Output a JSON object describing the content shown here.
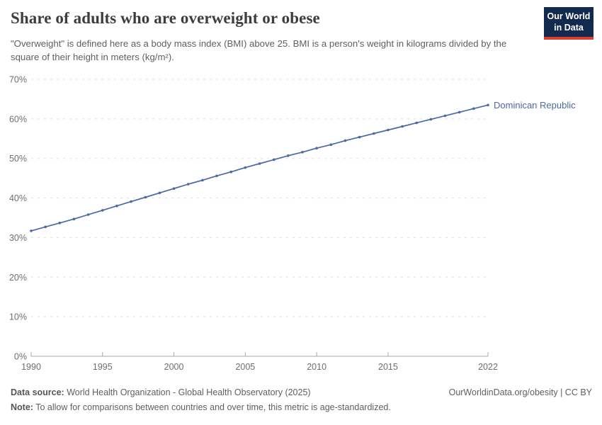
{
  "header": {
    "title": "Share of adults who are overweight or obese",
    "subtitle": "\"Overweight\" is defined here as a body mass index (BMI) above 25. BMI is a person's weight in kilograms divided by the square of their height in meters (kg/m²).",
    "logo": {
      "line1": "Our World",
      "line2": "in Data"
    }
  },
  "chart_data": {
    "type": "line",
    "title": "Share of adults who are overweight or obese",
    "x": [
      1990,
      1991,
      1992,
      1993,
      1994,
      1995,
      1996,
      1997,
      1998,
      1999,
      2000,
      2001,
      2002,
      2003,
      2004,
      2005,
      2006,
      2007,
      2008,
      2009,
      2010,
      2011,
      2012,
      2013,
      2014,
      2015,
      2016,
      2017,
      2018,
      2019,
      2020,
      2021,
      2022
    ],
    "series": [
      {
        "name": "Dominican Republic",
        "color": "#4A69A5",
        "values": [
          31.7,
          32.7,
          33.7,
          34.7,
          35.8,
          36.9,
          38.0,
          39.1,
          40.2,
          41.3,
          42.4,
          43.5,
          44.5,
          45.6,
          46.6,
          47.7,
          48.7,
          49.7,
          50.7,
          51.6,
          52.6,
          53.5,
          54.5,
          55.4,
          56.3,
          57.2,
          58.1,
          59.0,
          59.9,
          60.8,
          61.7,
          62.6,
          63.5
        ]
      }
    ],
    "xlim": [
      1990,
      2022
    ],
    "ylim": [
      0,
      70
    ],
    "xticks": [
      1990,
      1995,
      2000,
      2005,
      2010,
      2015,
      2022
    ],
    "yticks": [
      0,
      10,
      20,
      30,
      40,
      50,
      60,
      70
    ],
    "ytick_suffix": "%",
    "xlabel": "",
    "ylabel": "",
    "grid": "horizontal-dashed",
    "legend": "line-end-label"
  },
  "footer": {
    "datasource_label": "Data source:",
    "datasource_text": " World Health Organization - Global Health Observatory (2025)",
    "rights": "OurWorldinData.org/obesity | CC BY",
    "note_label": "Note:",
    "note_text": " To allow for comparisons between countries and over time, this metric is age-standardized."
  },
  "colors": {
    "line": "#4A69A5",
    "grid": "#dedede",
    "axis": "#a8a8a8",
    "tick_label": "#6e6e6e",
    "logo_navy": "#122a4e",
    "logo_red": "#dc3d33",
    "title_text": "#3d3d3d",
    "muted_text": "#5f5f5f"
  }
}
